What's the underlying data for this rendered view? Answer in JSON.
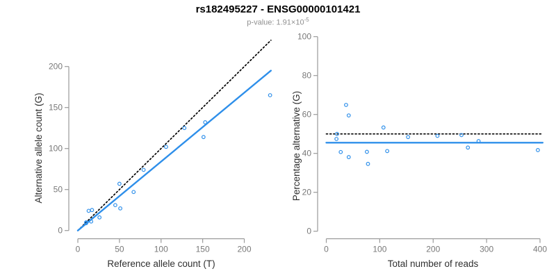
{
  "header": {
    "title": "rs182495227 - ENSG00000101421",
    "p_value_text": "p-value: 1.91×10",
    "p_value_exponent": "-5"
  },
  "colors": {
    "accent_blue": "#2E8FEA",
    "dotted_line": "#000000",
    "axis_gray": "#9a9a9a",
    "tick_label_gray": "#787878",
    "subtitle_gray": "#8f8f8f",
    "background": "#ffffff"
  },
  "chart_data": [
    {
      "type": "scatter",
      "title": "",
      "xlabel": "Reference allele count (T)",
      "ylabel": "Alternative allele count (G)",
      "xlim": [
        0,
        200
      ],
      "ylim": [
        0,
        200
      ],
      "xticks": [
        0,
        50,
        100,
        150,
        200
      ],
      "yticks": [
        0,
        50,
        100,
        150,
        200
      ],
      "grid": false,
      "legend": "none",
      "point_style": "open-circle",
      "point_color": "#2E8FEA",
      "points": [
        [
          10,
          9
        ],
        [
          10,
          10
        ],
        [
          13,
          24
        ],
        [
          16,
          11
        ],
        [
          17,
          25
        ],
        [
          26,
          16
        ],
        [
          45,
          31
        ],
        [
          50,
          57
        ],
        [
          51,
          27
        ],
        [
          67,
          47
        ],
        [
          79,
          74
        ],
        [
          106,
          102
        ],
        [
          128,
          125
        ],
        [
          151,
          114
        ],
        [
          153,
          132
        ],
        [
          231,
          165
        ]
      ],
      "lines": [
        {
          "name": "identity-line",
          "style": "dotted",
          "color": "#000000",
          "from": [
            0,
            0
          ],
          "to": [
            232,
            232
          ]
        },
        {
          "name": "regression-line",
          "style": "solid",
          "color": "#2E8FEA",
          "from": [
            0,
            0
          ],
          "to": [
            232,
            195
          ]
        }
      ]
    },
    {
      "type": "scatter",
      "title": "",
      "xlabel": "Total number of reads",
      "ylabel": "Percentage alternative (G)",
      "xlim": [
        0,
        400
      ],
      "ylim": [
        0,
        100
      ],
      "xticks": [
        0,
        100,
        200,
        300,
        400
      ],
      "yticks": [
        0,
        20,
        40,
        60,
        80,
        100
      ],
      "grid": false,
      "legend": "none",
      "point_style": "open-circle",
      "point_color": "#2E8FEA",
      "points": [
        [
          19,
          47.4
        ],
        [
          20,
          50
        ],
        [
          27,
          40.7
        ],
        [
          37,
          64.9
        ],
        [
          42,
          59.5
        ],
        [
          42,
          38.1
        ],
        [
          76,
          40.8
        ],
        [
          78,
          34.6
        ],
        [
          107,
          53.3
        ],
        [
          114,
          41.2
        ],
        [
          153,
          48.4
        ],
        [
          208,
          49
        ],
        [
          253,
          49.4
        ],
        [
          265,
          43
        ],
        [
          285,
          46.3
        ],
        [
          396,
          41.7
        ]
      ],
      "lines": [
        {
          "name": "expected-50pct-line",
          "style": "dotted",
          "color": "#000000",
          "y": 50
        },
        {
          "name": "mean-percentage-line",
          "style": "solid",
          "color": "#2E8FEA",
          "y": 45.5
        }
      ]
    }
  ]
}
